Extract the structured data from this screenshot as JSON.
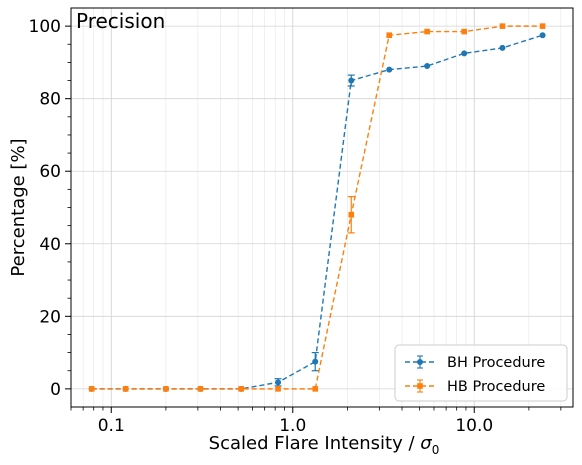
{
  "chart_data": {
    "type": "line",
    "title": "Precision",
    "xlabel": "Scaled Flare Intensity / ",
    "xlabel_symbol": "σ",
    "xlabel_subscript": "0",
    "ylabel": "Percentage [%]",
    "xscale": "log",
    "xlim": [
      0.06,
      35
    ],
    "ylim": [
      -5,
      105
    ],
    "x_ticks": [
      0.1,
      1.0,
      10.0
    ],
    "x_tick_labels": [
      "0.1",
      "1.0",
      "10.0"
    ],
    "y_ticks": [
      0,
      20,
      40,
      60,
      80,
      100
    ],
    "y_tick_labels": [
      "0",
      "20",
      "40",
      "60",
      "80",
      "100"
    ],
    "grid": true,
    "legend_position": "lower right",
    "series": [
      {
        "name": "BH Procedure",
        "color": "#1f77b4",
        "marker": "circle",
        "linestyle": "dashed",
        "x": [
          0.078,
          0.12,
          0.2,
          0.31,
          0.52,
          0.83,
          1.33,
          2.1,
          3.4,
          5.5,
          8.8,
          14.3,
          23.8
        ],
        "y": [
          0,
          0,
          0,
          0,
          0,
          1.8,
          7.5,
          85,
          88,
          89,
          92.5,
          94,
          97.5
        ],
        "yerr": [
          0,
          0,
          0,
          0,
          0,
          1.0,
          2.5,
          1.5,
          0,
          0,
          0,
          0,
          0
        ]
      },
      {
        "name": "HB Procedure",
        "color": "#ff7f0e",
        "marker": "square",
        "linestyle": "dashed",
        "x": [
          0.078,
          0.12,
          0.2,
          0.31,
          0.52,
          0.83,
          1.33,
          2.1,
          3.4,
          5.5,
          8.8,
          14.3,
          23.8
        ],
        "y": [
          0,
          0,
          0,
          0,
          0,
          0,
          0,
          48,
          97.5,
          98.5,
          98.5,
          100,
          100
        ],
        "yerr": [
          0,
          0,
          0,
          0,
          0,
          0,
          0,
          5,
          0,
          0,
          0,
          0,
          0
        ]
      }
    ]
  }
}
